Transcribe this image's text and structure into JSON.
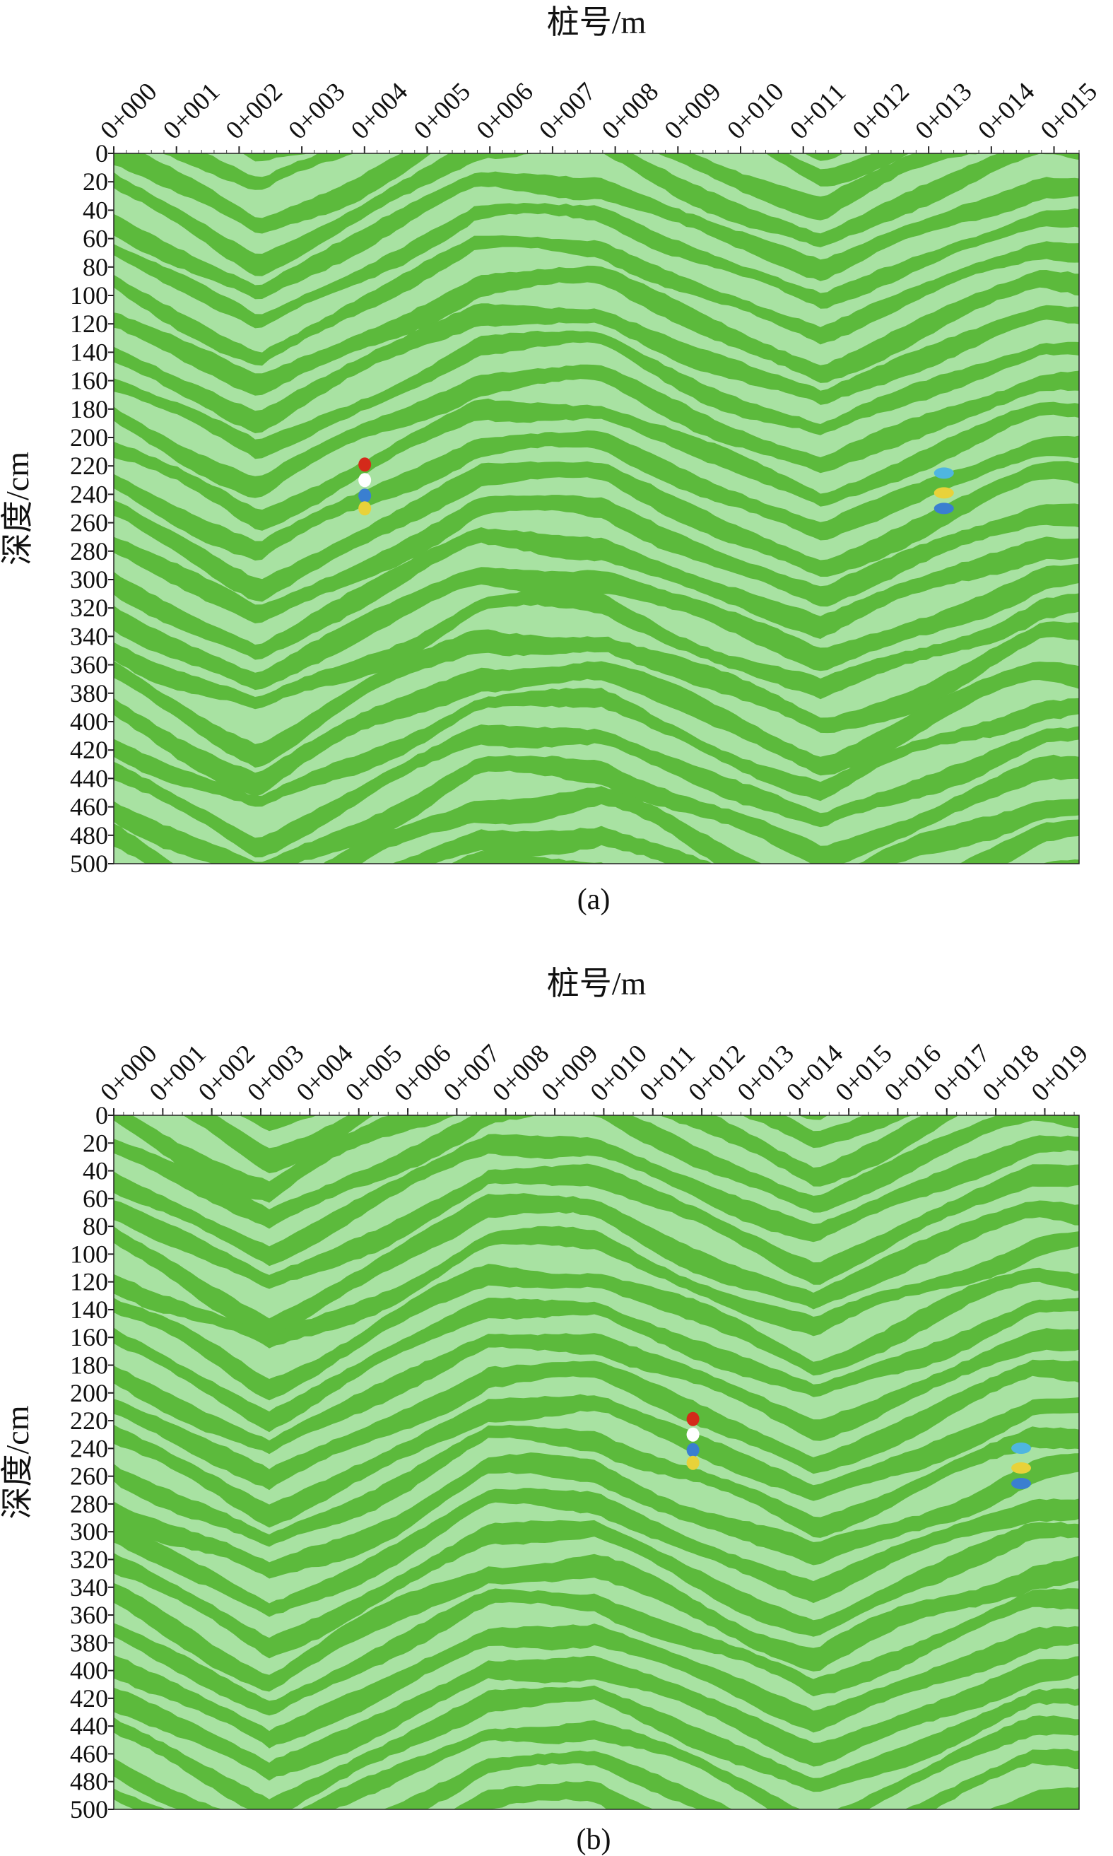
{
  "chart_data": [
    {
      "type": "heatmap",
      "xlabel": "桩号/m",
      "ylabel": "深度/cm",
      "caption": "(a)",
      "colors": [
        "#5cba3c",
        "#a8e2a2"
      ],
      "xlim": [
        0,
        15.4
      ],
      "xticks": [
        {
          "value": 0,
          "label": "0+000"
        },
        {
          "value": 1,
          "label": "0+001"
        },
        {
          "value": 2,
          "label": "0+002"
        },
        {
          "value": 3,
          "label": "0+003"
        },
        {
          "value": 4,
          "label": "0+004"
        },
        {
          "value": 5,
          "label": "0+005"
        },
        {
          "value": 6,
          "label": "0+006"
        },
        {
          "value": 7,
          "label": "0+007"
        },
        {
          "value": 8,
          "label": "0+008"
        },
        {
          "value": 9,
          "label": "0+009"
        },
        {
          "value": 10,
          "label": "0+010"
        },
        {
          "value": 11,
          "label": "0+011"
        },
        {
          "value": 12,
          "label": "0+012"
        },
        {
          "value": 13,
          "label": "0+013"
        },
        {
          "value": 14,
          "label": "0+014"
        },
        {
          "value": 15,
          "label": "0+015"
        }
      ],
      "ylim": [
        0,
        500
      ],
      "y_reversed": true,
      "yticks": [
        0,
        20,
        40,
        60,
        80,
        100,
        120,
        140,
        160,
        180,
        200,
        220,
        240,
        260,
        280,
        300,
        320,
        340,
        360,
        380,
        400,
        420,
        440,
        460,
        480,
        500
      ]
    },
    {
      "type": "heatmap",
      "xlabel": "桩号/m",
      "ylabel": "深度/cm",
      "caption": "(b)",
      "colors": [
        "#5cba3c",
        "#a8e2a2"
      ],
      "xlim": [
        0,
        19.7
      ],
      "xticks": [
        {
          "value": 0,
          "label": "0+000"
        },
        {
          "value": 1,
          "label": "0+001"
        },
        {
          "value": 2,
          "label": "0+002"
        },
        {
          "value": 3,
          "label": "0+003"
        },
        {
          "value": 4,
          "label": "0+004"
        },
        {
          "value": 5,
          "label": "0+005"
        },
        {
          "value": 6,
          "label": "0+006"
        },
        {
          "value": 7,
          "label": "0+007"
        },
        {
          "value": 8,
          "label": "0+008"
        },
        {
          "value": 9,
          "label": "0+009"
        },
        {
          "value": 10,
          "label": "0+010"
        },
        {
          "value": 11,
          "label": "0+011"
        },
        {
          "value": 12,
          "label": "0+012"
        },
        {
          "value": 13,
          "label": "0+013"
        },
        {
          "value": 14,
          "label": "0+014"
        },
        {
          "value": 15,
          "label": "0+015"
        },
        {
          "value": 16,
          "label": "0+016"
        },
        {
          "value": 17,
          "label": "0+017"
        },
        {
          "value": 18,
          "label": "0+018"
        },
        {
          "value": 19,
          "label": "0+019"
        }
      ],
      "ylim": [
        0,
        500
      ],
      "y_reversed": true,
      "yticks": [
        0,
        20,
        40,
        60,
        80,
        100,
        120,
        140,
        160,
        180,
        200,
        220,
        240,
        260,
        280,
        300,
        320,
        340,
        360,
        380,
        400,
        420,
        440,
        460,
        480,
        500
      ]
    }
  ]
}
